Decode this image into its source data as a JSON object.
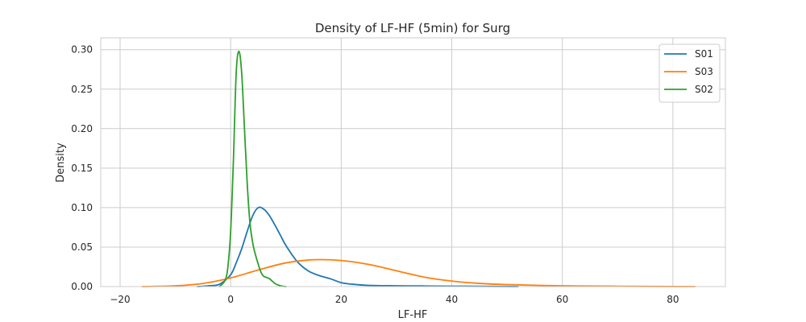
{
  "chart_data": {
    "type": "line",
    "title": "Density of LF-HF (5min) for Surg",
    "xlabel": "LF-HF",
    "ylabel": "Density",
    "xlim": [
      -23.5,
      89.5
    ],
    "ylim": [
      0,
      0.315
    ],
    "xticks": [
      -20,
      0,
      20,
      40,
      60,
      80
    ],
    "xtick_labels": [
      "−20",
      "0",
      "20",
      "40",
      "60",
      "80"
    ],
    "yticks": [
      0.0,
      0.05,
      0.1,
      0.15,
      0.2,
      0.25,
      0.3
    ],
    "ytick_labels": [
      "0.00",
      "0.05",
      "0.10",
      "0.15",
      "0.20",
      "0.25",
      "0.30"
    ],
    "grid": true,
    "legend_position": "top-right",
    "series": [
      {
        "name": "S01",
        "color": "#1f77b4",
        "x": [
          -6,
          -4,
          -2,
          0,
          1,
          2,
          3,
          4,
          5,
          6,
          7,
          8,
          9,
          10,
          12,
          14,
          16,
          18,
          20,
          22,
          25,
          30,
          35,
          40,
          45,
          52
        ],
        "y": [
          0.0,
          0.001,
          0.003,
          0.015,
          0.03,
          0.048,
          0.07,
          0.09,
          0.1,
          0.098,
          0.09,
          0.078,
          0.065,
          0.052,
          0.032,
          0.02,
          0.014,
          0.01,
          0.005,
          0.003,
          0.0015,
          0.001,
          0.0008,
          0.0005,
          0.0003,
          0.0
        ]
      },
      {
        "name": "S03",
        "color": "#ff7f0e",
        "x": [
          -16,
          -10,
          -5,
          0,
          5,
          10,
          15,
          20,
          25,
          30,
          35,
          40,
          45,
          50,
          60,
          70,
          84
        ],
        "y": [
          0.0,
          0.001,
          0.004,
          0.011,
          0.021,
          0.03,
          0.034,
          0.033,
          0.028,
          0.02,
          0.012,
          0.007,
          0.004,
          0.0025,
          0.001,
          0.0004,
          0.0
        ]
      },
      {
        "name": "S02",
        "color": "#2ca02c",
        "x": [
          -2,
          -1,
          -0.5,
          0,
          0.5,
          1,
          1.5,
          2,
          2.5,
          3,
          3.5,
          4,
          4.5,
          5,
          5.5,
          6,
          7,
          8,
          9,
          10
        ],
        "y": [
          0.0,
          0.008,
          0.025,
          0.07,
          0.16,
          0.27,
          0.298,
          0.27,
          0.2,
          0.13,
          0.08,
          0.055,
          0.04,
          0.028,
          0.018,
          0.013,
          0.01,
          0.004,
          0.001,
          0.0
        ]
      }
    ]
  }
}
